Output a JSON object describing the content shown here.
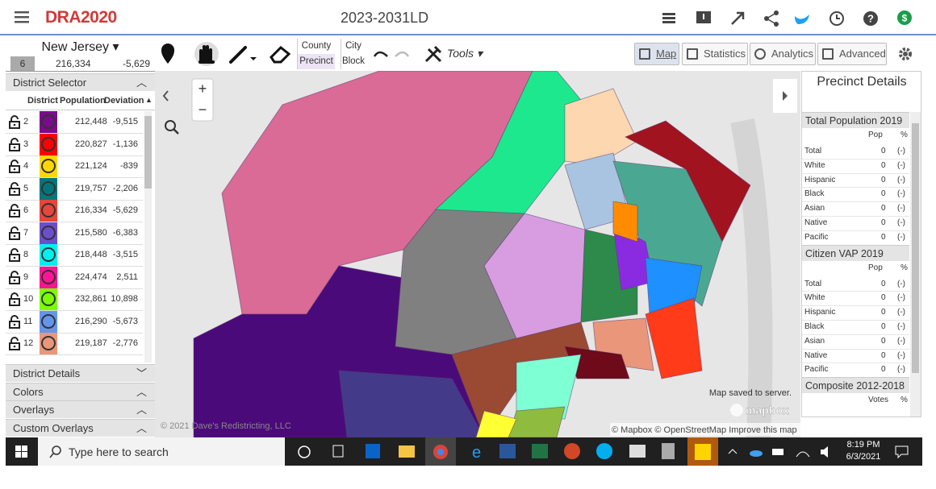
{
  "header": {
    "logo": "DRA2020",
    "title": "2023-2031LD"
  },
  "left_panel": {
    "state": "New Jersey",
    "selected": {
      "district": "6",
      "population": "216,334",
      "deviation": "-5,629"
    },
    "district_selector": {
      "title": "District Selector",
      "columns": [
        "District",
        "Population",
        "Deviation"
      ],
      "rows": [
        {
          "district": "2",
          "color": "#7b0a8c",
          "population": "212,448",
          "deviation": "-9,515"
        },
        {
          "district": "3",
          "color": "#ff0000",
          "population": "220,827",
          "deviation": "-1,136"
        },
        {
          "district": "4",
          "color": "#ffd700",
          "population": "221,124",
          "deviation": "-839"
        },
        {
          "district": "5",
          "color": "#00767a",
          "population": "219,757",
          "deviation": "-2,206"
        },
        {
          "district": "6",
          "color": "#e8453c",
          "population": "216,334",
          "deviation": "-5,629"
        },
        {
          "district": "7",
          "color": "#6a4fc9",
          "population": "215,580",
          "deviation": "-6,383"
        },
        {
          "district": "8",
          "color": "#00f0f0",
          "population": "218,448",
          "deviation": "-3,515"
        },
        {
          "district": "9",
          "color": "#ff1493",
          "population": "224,474",
          "deviation": "2,511"
        },
        {
          "district": "10",
          "color": "#7cfc00",
          "population": "232,861",
          "deviation": "10,898"
        },
        {
          "district": "11",
          "color": "#6495ed",
          "population": "216,290",
          "deviation": "-5,673"
        },
        {
          "district": "12",
          "color": "#e9967a",
          "population": "219,187",
          "deviation": "-2,776"
        }
      ]
    },
    "sections": [
      "District Details",
      "Colors",
      "Overlays",
      "Custom Overlays"
    ]
  },
  "toolbar": {
    "granularity": [
      "County",
      "City",
      "Precinct",
      "Block"
    ],
    "tools": "Tools",
    "views": [
      "Map",
      "Statistics",
      "Analytics",
      "Advanced"
    ]
  },
  "map": {
    "status": "Map saved to server.",
    "brand": "mapbox",
    "attribution": "© Mapbox © OpenStreetMap Improve this map",
    "copyright": "© 2021 Dave's Redistricting, LLC"
  },
  "precinct_details": {
    "title": "Precinct Details",
    "sections": [
      {
        "title": "Total Population 2019",
        "columns": [
          "Pop",
          "%"
        ],
        "rows": [
          {
            "label": "Total",
            "pop": "0",
            "pct": "(-)"
          },
          {
            "label": "White",
            "pop": "0",
            "pct": "(-)"
          },
          {
            "label": "Hispanic",
            "pop": "0",
            "pct": "(-)"
          },
          {
            "label": "Black",
            "pop": "0",
            "pct": "(-)"
          },
          {
            "label": "Asian",
            "pop": "0",
            "pct": "(-)"
          },
          {
            "label": "Native",
            "pop": "0",
            "pct": "(-)"
          },
          {
            "label": "Pacific",
            "pop": "0",
            "pct": "(-)"
          }
        ]
      },
      {
        "title": "Citizen VAP 2019",
        "columns": [
          "Pop",
          "%"
        ],
        "rows": [
          {
            "label": "Total",
            "pop": "0",
            "pct": "(-)"
          },
          {
            "label": "White",
            "pop": "0",
            "pct": "(-)"
          },
          {
            "label": "Hispanic",
            "pop": "0",
            "pct": "(-)"
          },
          {
            "label": "Black",
            "pop": "0",
            "pct": "(-)"
          },
          {
            "label": "Asian",
            "pop": "0",
            "pct": "(-)"
          },
          {
            "label": "Native",
            "pop": "0",
            "pct": "(-)"
          },
          {
            "label": "Pacific",
            "pop": "0",
            "pct": "(-)"
          }
        ]
      },
      {
        "title": "Composite 2012-2018",
        "columns": [
          "Votes",
          "%"
        ]
      }
    ]
  },
  "taskbar": {
    "search": "Type here to search",
    "time": "8:19 PM",
    "date": "6/3/2021"
  }
}
